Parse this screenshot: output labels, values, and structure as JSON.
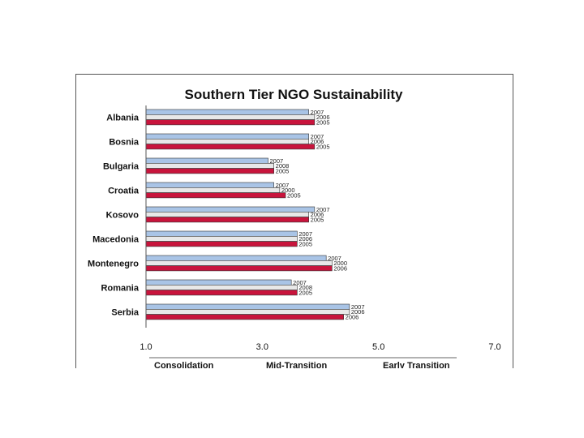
{
  "chart_data": {
    "type": "bar",
    "orientation": "horizontal",
    "title": "Southern Tier NGO Sustainability",
    "categories": [
      "Albania",
      "Bosnia",
      "Bulgaria",
      "Croatia",
      "Kosovo",
      "Macedonia",
      "Montenegro",
      "Romania",
      "Serbia"
    ],
    "series": [
      {
        "name": "2007",
        "color": "#a9c4e6",
        "values": [
          3.8,
          3.8,
          3.1,
          3.2,
          3.9,
          3.6,
          4.1,
          3.5,
          4.5
        ],
        "labels": [
          "2007",
          "2007",
          "2007",
          "2007",
          "2007",
          "2007",
          "2007",
          "2007",
          "2007"
        ]
      },
      {
        "name": "2006",
        "color": "#e8e8e8",
        "values": [
          3.9,
          3.8,
          3.2,
          3.3,
          3.8,
          3.6,
          4.2,
          3.6,
          4.5
        ],
        "labels": [
          "2006",
          "2006",
          "2008",
          "2000",
          "2006",
          "2006",
          "2000",
          "2008",
          "2006"
        ]
      },
      {
        "name": "2005",
        "color": "#c8143c",
        "values": [
          3.9,
          3.9,
          3.2,
          3.4,
          3.8,
          3.6,
          4.2,
          3.6,
          4.4
        ],
        "labels": [
          "2005",
          "2005",
          "2005",
          "2005",
          "2005",
          "2005",
          "2006",
          "2005",
          "2006"
        ]
      }
    ],
    "xlim": [
      1.0,
      7.0
    ],
    "xticks": [
      "1.0",
      "3.0",
      "5.0",
      "7.0"
    ],
    "bands": [
      "Consolidation",
      "Mid-Transition",
      "Early Transition"
    ],
    "grid": false,
    "legend": "none"
  }
}
